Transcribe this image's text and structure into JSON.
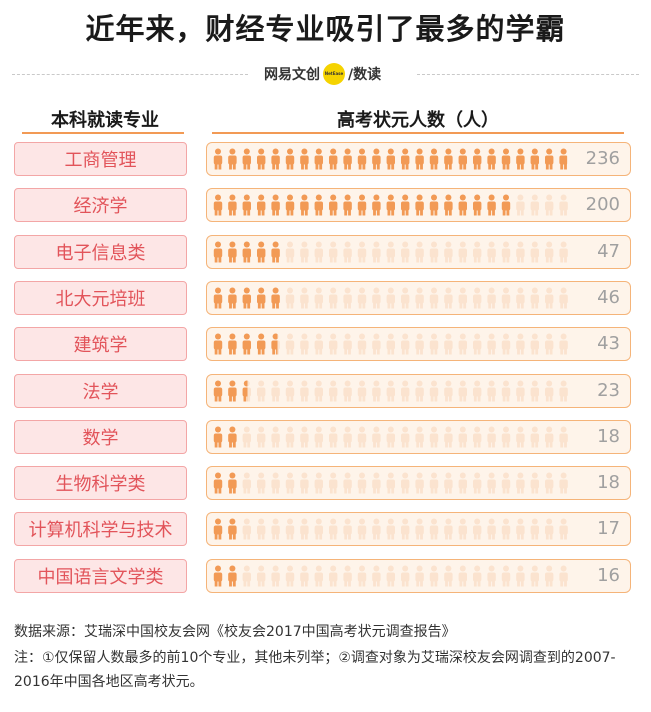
{
  "title": "近年来，财经专业吸引了最多的学霸",
  "brand": {
    "left": "网易文创",
    "dot": "NetEase",
    "right": "/数读"
  },
  "headers": {
    "category": "本科就读专业",
    "value": "高考状元人数（人）"
  },
  "colors": {
    "icon_filled": "#f29a55",
    "icon_empty": "#fbe3cf",
    "label_text": "#e2545a",
    "label_bg": "#fde6e6",
    "bar_bg": "#fef4ea",
    "bar_border": "#f5b479"
  },
  "chart_data": {
    "type": "bar",
    "categories": [
      "工商管理",
      "经济学",
      "电子信息类",
      "北大元培班",
      "建筑学",
      "法学",
      "数学",
      "生物科学类",
      "计算机科学与技术",
      "中国语言文学类"
    ],
    "values": [
      236,
      200,
      47,
      46,
      43,
      23,
      18,
      18,
      17,
      16
    ],
    "value_labels": [
      "236",
      "200",
      "47",
      "46",
      "43",
      "23",
      "18",
      "18",
      "17",
      "16"
    ],
    "icon_unit": "person",
    "xlim": [
      0,
      240
    ],
    "title": "近年来，财经专业吸引了最多的学霸",
    "xlabel": "",
    "ylabel": ""
  },
  "footer": {
    "source": "数据来源：艾瑞深中国校友会网《校友会2017中国高考状元调查报告》",
    "note": "注：①仅保留人数最多的前10个专业，其他未列举；②调查对象为艾瑞深校友会网调查到的2007-2016年中国各地区高考状元。"
  }
}
